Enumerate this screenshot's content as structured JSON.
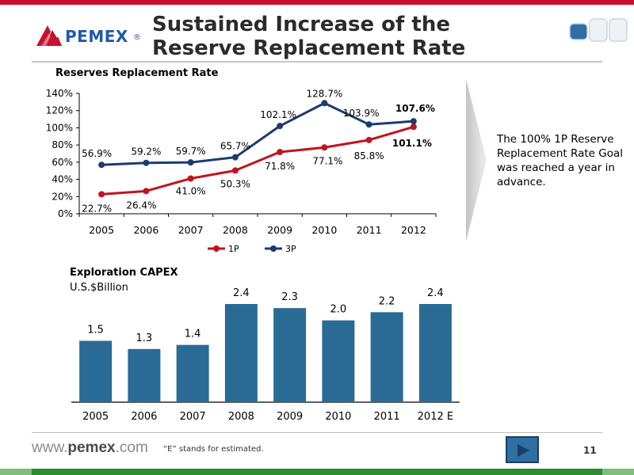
{
  "slide": {
    "title": "Sustained Increase of the Reserve Replacement Rate",
    "logo_text": "PEMEX",
    "logo_reg": "®",
    "note": "The 100% 1P Reserve Replacement Rate Goal was reached a year in advance.",
    "footer_url_prefix": "www.",
    "footer_url_bold": "pemex",
    "footer_url_suffix": ".com",
    "footnote": "“E” stands for estimated.",
    "page_number": "11"
  },
  "colors": {
    "brand_red": "#c8102e",
    "brand_green": "#2e8b2e",
    "series_1p": "#c0141f",
    "series_3p": "#1a3c6e",
    "bar": "#2a6b96"
  },
  "chart_data": [
    {
      "type": "line",
      "title": "Reserves Replacement Rate",
      "categories": [
        "2005",
        "2006",
        "2007",
        "2008",
        "2009",
        "2010",
        "2011",
        "2012"
      ],
      "ylim": [
        0,
        140
      ],
      "yticks": [
        "0%",
        "20%",
        "40%",
        "60%",
        "80%",
        "100%",
        "120%",
        "140%"
      ],
      "legend": "bottom",
      "grid": false,
      "series": [
        {
          "name": "1P",
          "values": [
            22.7,
            26.4,
            41.0,
            50.3,
            71.8,
            77.1,
            85.8,
            101.1
          ],
          "labels": [
            "22.7%",
            "26.4%",
            "41.0%",
            "50.3%",
            "71.8%",
            "77.1%",
            "85.8%",
            "101.1%"
          ]
        },
        {
          "name": "3P",
          "values": [
            56.9,
            59.2,
            59.7,
            65.7,
            102.1,
            128.7,
            103.9,
            107.6
          ],
          "labels": [
            "56.9%",
            "59.2%",
            "59.7%",
            "65.7%",
            "102.1%",
            "128.7%",
            "103.9%",
            "107.6%"
          ]
        }
      ]
    },
    {
      "type": "bar",
      "title": "Exploration CAPEX",
      "subtitle": "U.S.$Billion",
      "categories": [
        "2005",
        "2006",
        "2007",
        "2008",
        "2009",
        "2010",
        "2011",
        "2012 E"
      ],
      "values": [
        1.5,
        1.3,
        1.4,
        2.4,
        2.3,
        2.0,
        2.2,
        2.4
      ],
      "labels": [
        "1.5",
        "1.3",
        "1.4",
        "2.4",
        "2.3",
        "2.0",
        "2.2",
        "2.4"
      ],
      "ylim": [
        0,
        2.4
      ]
    }
  ]
}
